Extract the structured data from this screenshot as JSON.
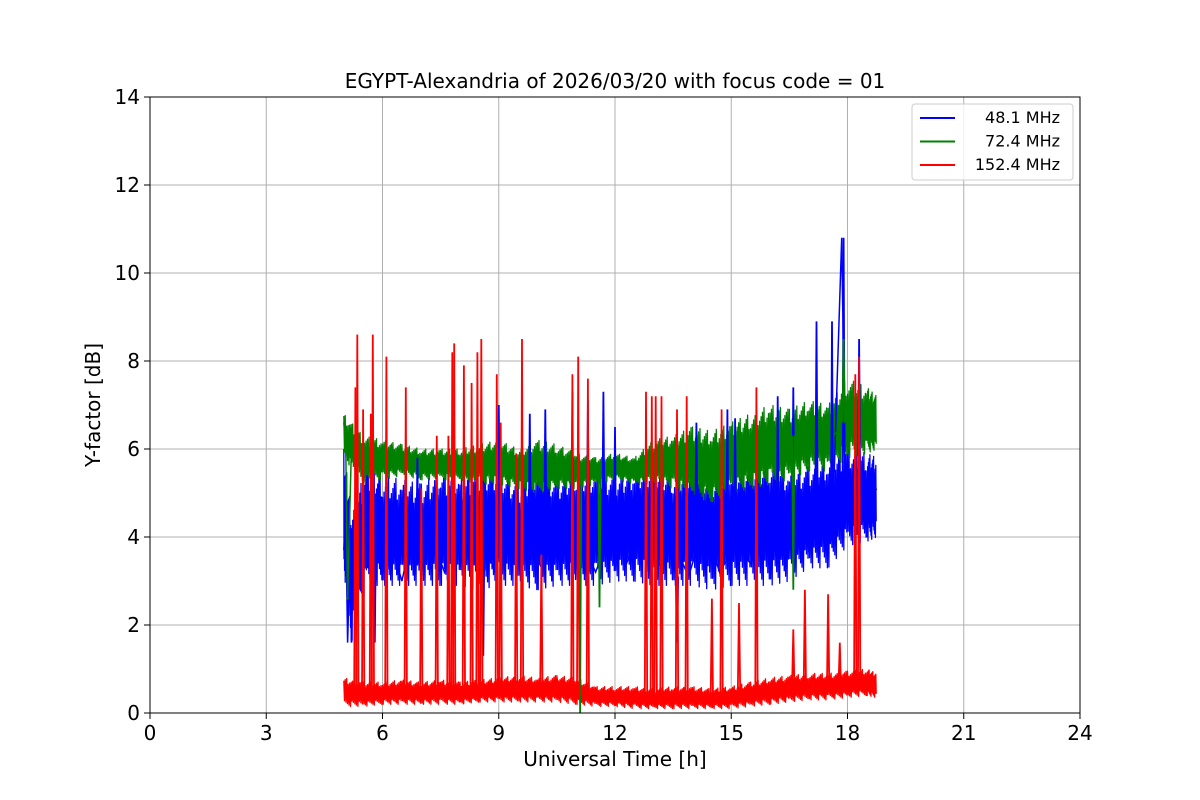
{
  "chart_data": {
    "type": "line",
    "title": "EGYPT-Alexandria of 2026/03/20 with focus code = 01",
    "xlabel": "Universal Time [h]",
    "ylabel": "Y-factor [dB]",
    "xlim": [
      0,
      24
    ],
    "ylim": [
      0,
      14
    ],
    "xticks": [
      0,
      3,
      6,
      9,
      12,
      15,
      18,
      21,
      24
    ],
    "yticks": [
      0,
      2,
      4,
      6,
      8,
      10,
      12,
      14
    ],
    "grid": true,
    "legend_position": "top-right",
    "series": [
      {
        "name": "48.1 MHz",
        "legend_label": "  48.1 MHz",
        "color": "#0000ff",
        "x": [
          5.0,
          5.05,
          5.1,
          5.15,
          5.2,
          5.3,
          5.5,
          5.7,
          5.9,
          6.1,
          6.3,
          6.5,
          6.8,
          7.0,
          7.3,
          7.6,
          8.0,
          8.3,
          8.6,
          8.9,
          9.2,
          9.5,
          9.8,
          10.1,
          10.5,
          10.9,
          11.2,
          11.5,
          11.9,
          12.3,
          12.7,
          13.1,
          13.5,
          13.9,
          14.3,
          14.7,
          15.1,
          15.5,
          15.9,
          16.3,
          16.7,
          17.0,
          17.3,
          17.6,
          17.85,
          17.95,
          18.05,
          18.2,
          18.4,
          18.6,
          18.75
        ],
        "values": [
          3.7,
          4.5,
          1.6,
          3.2,
          4.2,
          3.4,
          3.9,
          3.1,
          4.0,
          3.3,
          3.6,
          3.0,
          4.2,
          3.4,
          3.9,
          3.2,
          4.3,
          3.5,
          4.0,
          3.2,
          4.4,
          3.6,
          3.9,
          3.3,
          4.2,
          3.5,
          3.8,
          3.2,
          4.1,
          3.4,
          4.4,
          3.3,
          3.9,
          3.1,
          4.3,
          3.2,
          3.8,
          3.4,
          4.2,
          3.6,
          4.4,
          3.7,
          4.6,
          3.9,
          10.8,
          4.8,
          5.4,
          5.1,
          5.0,
          4.9,
          5.1
        ],
        "band": [
          [
            5.0,
            3.3,
            6.0
          ],
          [
            5.2,
            1.6,
            4.6
          ],
          [
            5.6,
            2.9,
            5.6
          ],
          [
            6.0,
            2.9,
            5.4
          ],
          [
            6.5,
            2.9,
            5.3
          ],
          [
            7.0,
            2.9,
            5.2
          ],
          [
            7.5,
            2.9,
            5.5
          ],
          [
            8.0,
            2.9,
            5.3
          ],
          [
            8.5,
            2.8,
            5.6
          ],
          [
            9.0,
            2.9,
            5.6
          ],
          [
            9.5,
            2.9,
            5.2
          ],
          [
            10.0,
            2.8,
            5.7
          ],
          [
            10.5,
            2.9,
            5.3
          ],
          [
            11.0,
            2.9,
            5.6
          ],
          [
            11.5,
            2.9,
            5.5
          ],
          [
            12.0,
            3.0,
            5.4
          ],
          [
            12.5,
            3.0,
            5.6
          ],
          [
            13.0,
            2.9,
            5.7
          ],
          [
            13.5,
            2.9,
            5.5
          ],
          [
            14.0,
            2.9,
            5.7
          ],
          [
            14.5,
            2.8,
            5.4
          ],
          [
            15.0,
            2.9,
            5.6
          ],
          [
            15.5,
            2.9,
            5.7
          ],
          [
            16.0,
            2.9,
            5.8
          ],
          [
            16.5,
            3.0,
            5.5
          ],
          [
            17.0,
            3.3,
            5.6
          ],
          [
            17.5,
            3.3,
            5.8
          ],
          [
            18.0,
            3.8,
            6.0
          ],
          [
            18.5,
            3.9,
            5.9
          ],
          [
            18.75,
            4.0,
            5.8
          ]
        ],
        "spikes": [
          [
            5.2,
            1.6
          ],
          [
            5.8,
            1.6
          ],
          [
            6.9,
            5.8
          ],
          [
            8.6,
            1.3
          ],
          [
            9.0,
            7.0
          ],
          [
            9.8,
            6.8
          ],
          [
            10.2,
            6.9
          ],
          [
            10.9,
            7.3
          ],
          [
            11.3,
            7.1
          ],
          [
            11.7,
            7.3
          ],
          [
            12.0,
            6.5
          ],
          [
            13.6,
            1.6
          ],
          [
            14.1,
            6.6
          ],
          [
            14.9,
            6.9
          ],
          [
            15.1,
            6.7
          ],
          [
            16.2,
            7.2
          ],
          [
            16.6,
            7.4
          ],
          [
            17.2,
            8.9
          ],
          [
            17.6,
            8.9
          ],
          [
            17.9,
            10.8
          ],
          [
            18.3,
            8.5
          ]
        ]
      },
      {
        "name": "72.4 MHz",
        "legend_label": "  72.4 MHz",
        "color": "#008000",
        "x": [
          5.0,
          5.05,
          5.1,
          5.2,
          5.5,
          6.0,
          6.5,
          7.0,
          7.5,
          8.0,
          8.5,
          9.0,
          9.5,
          10.0,
          10.5,
          11.0,
          11.5,
          12.0,
          12.5,
          13.0,
          13.5,
          14.0,
          14.5,
          15.0,
          15.5,
          16.0,
          16.5,
          17.0,
          17.5,
          18.0,
          18.5,
          18.75
        ],
        "values": [
          6.6,
          6.2,
          2.6,
          6.1,
          5.6,
          5.8,
          5.7,
          5.6,
          5.7,
          5.6,
          5.6,
          5.7,
          5.5,
          5.7,
          5.6,
          5.5,
          5.5,
          5.6,
          5.5,
          5.6,
          5.6,
          5.8,
          5.7,
          5.7,
          6.0,
          6.2,
          6.0,
          6.3,
          6.2,
          6.6,
          6.5,
          6.5
        ],
        "band": [
          [
            5.0,
            5.8,
            6.8
          ],
          [
            5.5,
            5.2,
            6.3
          ],
          [
            6.0,
            5.3,
            6.2
          ],
          [
            6.5,
            5.4,
            6.1
          ],
          [
            7.0,
            5.3,
            6.0
          ],
          [
            7.5,
            5.3,
            6.0
          ],
          [
            8.0,
            5.3,
            6.0
          ],
          [
            8.5,
            5.2,
            6.1
          ],
          [
            9.0,
            5.2,
            6.2
          ],
          [
            9.5,
            5.1,
            6.0
          ],
          [
            10.0,
            5.0,
            6.2
          ],
          [
            10.5,
            5.1,
            6.1
          ],
          [
            11.0,
            5.1,
            5.9
          ],
          [
            11.5,
            5.2,
            5.8
          ],
          [
            12.0,
            5.3,
            5.9
          ],
          [
            12.5,
            5.2,
            5.8
          ],
          [
            13.0,
            5.2,
            6.2
          ],
          [
            13.5,
            5.1,
            6.3
          ],
          [
            14.0,
            4.9,
            6.5
          ],
          [
            14.5,
            4.8,
            6.4
          ],
          [
            15.0,
            5.0,
            6.6
          ],
          [
            15.5,
            5.1,
            6.8
          ],
          [
            16.0,
            5.2,
            7.0
          ],
          [
            16.5,
            5.3,
            6.9
          ],
          [
            17.0,
            5.5,
            7.1
          ],
          [
            17.5,
            5.5,
            7.0
          ],
          [
            18.0,
            5.8,
            7.6
          ],
          [
            18.5,
            5.9,
            7.4
          ],
          [
            18.75,
            6.0,
            7.2
          ]
        ],
        "spikes": [
          [
            5.1,
            2.6
          ],
          [
            11.1,
            0.0
          ],
          [
            11.6,
            2.4
          ],
          [
            16.6,
            2.8
          ],
          [
            17.9,
            8.5
          ]
        ]
      },
      {
        "name": "152.4 MHz",
        "legend_label": "152.4 MHz",
        "color": "#ff0000",
        "x": [
          5.0,
          5.5,
          6.0,
          6.5,
          7.0,
          7.5,
          8.0,
          8.5,
          9.0,
          9.5,
          10.0,
          10.5,
          11.0,
          11.5,
          12.0,
          12.5,
          13.0,
          13.5,
          14.0,
          14.5,
          15.0,
          15.5,
          16.0,
          16.5,
          17.0,
          17.5,
          18.0,
          18.5,
          18.75
        ],
        "values": [
          0.6,
          0.4,
          0.45,
          0.5,
          0.45,
          0.5,
          0.45,
          0.5,
          0.5,
          0.55,
          0.5,
          0.55,
          0.5,
          0.4,
          0.4,
          0.4,
          0.35,
          0.4,
          0.4,
          0.35,
          0.4,
          0.45,
          0.5,
          0.55,
          0.6,
          0.6,
          0.65,
          0.7,
          0.65
        ],
        "band": [
          [
            5.0,
            0.15,
            0.8
          ],
          [
            5.5,
            0.15,
            0.7
          ],
          [
            6.0,
            0.2,
            0.7
          ],
          [
            6.5,
            0.2,
            0.75
          ],
          [
            7.0,
            0.2,
            0.7
          ],
          [
            7.5,
            0.2,
            0.75
          ],
          [
            8.0,
            0.2,
            0.7
          ],
          [
            8.5,
            0.25,
            0.75
          ],
          [
            9.0,
            0.25,
            0.8
          ],
          [
            9.5,
            0.25,
            0.85
          ],
          [
            10.0,
            0.25,
            0.8
          ],
          [
            10.5,
            0.25,
            0.85
          ],
          [
            11.0,
            0.2,
            0.8
          ],
          [
            11.5,
            0.15,
            0.6
          ],
          [
            12.0,
            0.15,
            0.6
          ],
          [
            12.5,
            0.1,
            0.6
          ],
          [
            13.0,
            0.1,
            0.55
          ],
          [
            13.5,
            0.1,
            0.6
          ],
          [
            14.0,
            0.1,
            0.6
          ],
          [
            14.5,
            0.1,
            0.55
          ],
          [
            15.0,
            0.1,
            0.6
          ],
          [
            15.5,
            0.15,
            0.7
          ],
          [
            16.0,
            0.2,
            0.8
          ],
          [
            16.5,
            0.25,
            0.85
          ],
          [
            17.0,
            0.3,
            0.9
          ],
          [
            17.5,
            0.3,
            0.9
          ],
          [
            18.0,
            0.35,
            0.95
          ],
          [
            18.5,
            0.4,
            1.0
          ],
          [
            18.75,
            0.35,
            0.9
          ]
        ],
        "spikes": [
          [
            5.3,
            7.4
          ],
          [
            5.35,
            8.6
          ],
          [
            5.5,
            6.9
          ],
          [
            5.7,
            6.8
          ],
          [
            5.75,
            8.6
          ],
          [
            6.1,
            8.1
          ],
          [
            6.6,
            7.4
          ],
          [
            7.0,
            5.1
          ],
          [
            7.4,
            6.3
          ],
          [
            7.7,
            6.3
          ],
          [
            7.8,
            8.2
          ],
          [
            7.85,
            8.4
          ],
          [
            8.1,
            7.9
          ],
          [
            8.3,
            7.5
          ],
          [
            8.45,
            8.2
          ],
          [
            8.55,
            8.5
          ],
          [
            8.95,
            7.7
          ],
          [
            9.05,
            6.6
          ],
          [
            9.45,
            5.9
          ],
          [
            9.6,
            8.5
          ],
          [
            10.1,
            3.6
          ],
          [
            10.5,
            0.8
          ],
          [
            10.9,
            7.7
          ],
          [
            11.05,
            8.1
          ],
          [
            11.3,
            7.6
          ],
          [
            12.8,
            7.3
          ],
          [
            12.95,
            7.2
          ],
          [
            13.05,
            7.2
          ],
          [
            13.2,
            7.2
          ],
          [
            13.6,
            6.9
          ],
          [
            13.85,
            7.2
          ],
          [
            14.5,
            2.6
          ],
          [
            14.75,
            6.9
          ],
          [
            15.2,
            2.5
          ],
          [
            15.65,
            7.4
          ],
          [
            16.6,
            1.9
          ],
          [
            16.9,
            2.8
          ],
          [
            17.5,
            2.7
          ],
          [
            17.8,
            1.6
          ],
          [
            18.2,
            7.7
          ],
          [
            18.3,
            8.1
          ]
        ]
      }
    ]
  }
}
